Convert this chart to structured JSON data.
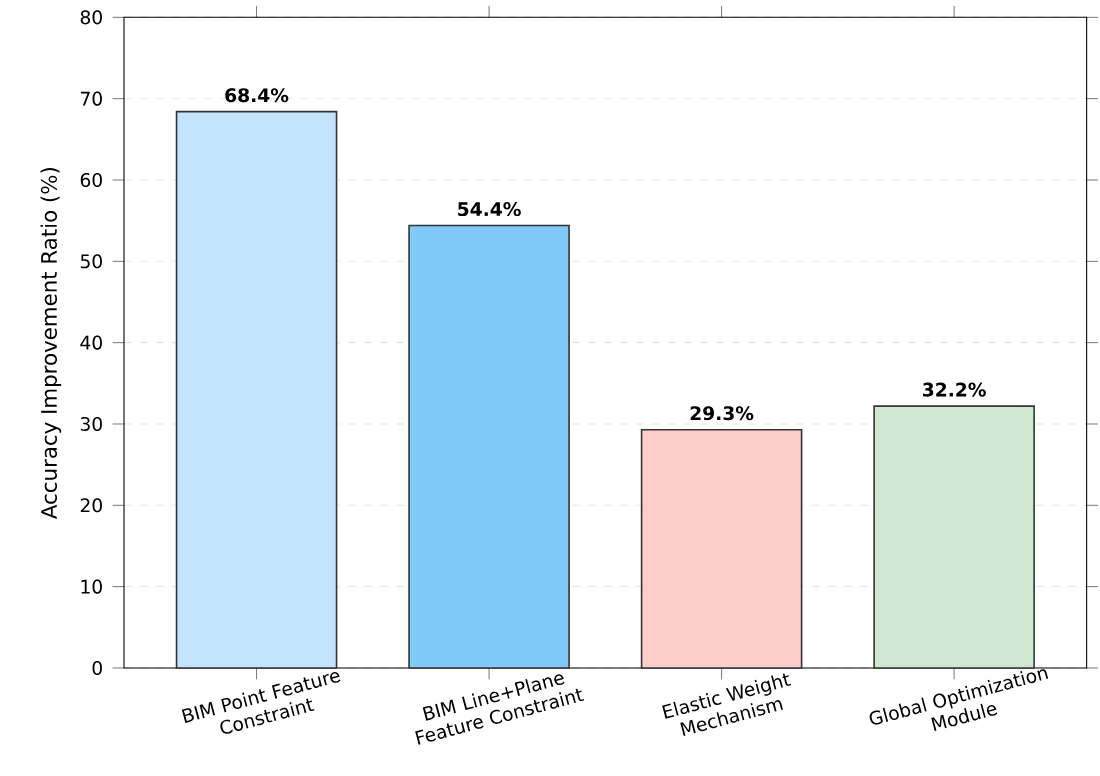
{
  "chart_data": {
    "type": "bar",
    "ylabel": "Accuracy Improvement Ratio (%)",
    "categories": [
      "BIM Point Feature Constraint",
      "BIM Line+Plane Feature Constraint",
      "Elastic Weight Mechanism",
      "Global Optimization Module"
    ],
    "values": [
      68.4,
      54.4,
      29.3,
      32.2
    ],
    "colors": [
      "#c2e4fc",
      "#80cafa",
      "#ffcccc",
      "#d0e8d2"
    ],
    "value_labels": [
      "68.4%",
      "54.4%",
      "29.3%",
      "32.2%"
    ],
    "ylim": [
      0,
      80
    ],
    "yticks": [
      0,
      10,
      20,
      30,
      40,
      50,
      60,
      70,
      80
    ],
    "grid": "y"
  }
}
